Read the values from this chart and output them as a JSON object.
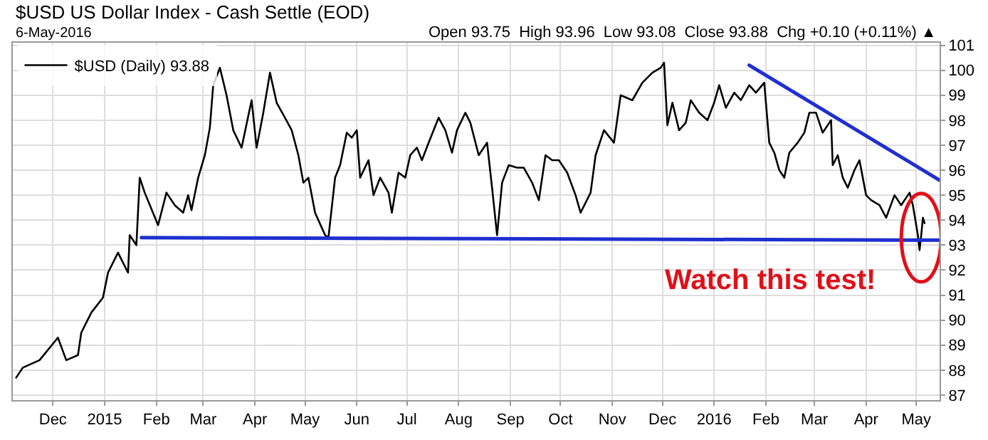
{
  "chart_data": {
    "type": "line",
    "title": "$USD US Dollar Index - Cash Settle (EOD)",
    "subtitle": "6-May-2016",
    "annotations": [
      "Open 93.75  High 93.96  Low 93.08  Close 93.88  Chg +0.10 (+0.11%) ▲",
      {
        "text": "Watch this test!",
        "x": "2016-05-04",
        "y": 93.3
      }
    ],
    "series": [
      {
        "name": "$USD (Daily) 93.88",
        "color": "#000000",
        "x": [
          "2014-11-09",
          "2014-11-13",
          "2014-11-23",
          "2014-12-04",
          "2014-12-09",
          "2014-12-16",
          "2014-12-18",
          "2014-12-24",
          "2014-12-31",
          "2015-01-03",
          "2015-01-09",
          "2015-01-15",
          "2015-01-16",
          "2015-01-20",
          "2015-01-22",
          "2015-01-25",
          "2015-02-02",
          "2015-02-07",
          "2015-02-12",
          "2015-02-17",
          "2015-02-20",
          "2015-02-22",
          "2015-02-26",
          "2015-03-02",
          "2015-03-05",
          "2015-03-07",
          "2015-03-11",
          "2015-03-15",
          "2015-03-19",
          "2015-03-24",
          "2015-03-30",
          "2015-04-02",
          "2015-04-06",
          "2015-04-10",
          "2015-04-14",
          "2015-04-19",
          "2015-04-23",
          "2015-04-27",
          "2015-04-30",
          "2015-05-03",
          "2015-05-07",
          "2015-05-13",
          "2015-05-15",
          "2015-05-19",
          "2015-05-22",
          "2015-05-26",
          "2015-05-29",
          "2015-06-01",
          "2015-06-03",
          "2015-06-08",
          "2015-06-11",
          "2015-06-15",
          "2015-06-20",
          "2015-06-22",
          "2015-06-26",
          "2015-06-30",
          "2015-07-03",
          "2015-07-07",
          "2015-07-10",
          "2015-07-14",
          "2015-07-20",
          "2015-07-24",
          "2015-07-28",
          "2015-07-31",
          "2015-08-05",
          "2015-08-08",
          "2015-08-13",
          "2015-08-18",
          "2015-08-21",
          "2015-08-24",
          "2015-08-27",
          "2015-08-31",
          "2015-09-05",
          "2015-09-09",
          "2015-09-14",
          "2015-09-18",
          "2015-09-22",
          "2015-09-26",
          "2015-09-30",
          "2015-10-05",
          "2015-10-10",
          "2015-10-13",
          "2015-10-19",
          "2015-10-22",
          "2015-10-27",
          "2015-11-02",
          "2015-11-06",
          "2015-11-13",
          "2015-11-19",
          "2015-11-25",
          "2015-11-30",
          "2015-12-02",
          "2015-12-04",
          "2015-12-07",
          "2015-12-11",
          "2015-12-15",
          "2015-12-18",
          "2015-12-23",
          "2015-12-28",
          "2016-01-01",
          "2016-01-04",
          "2016-01-08",
          "2016-01-13",
          "2016-01-17",
          "2016-01-22",
          "2016-01-26",
          "2016-01-31",
          "2016-02-01",
          "2016-02-03",
          "2016-02-06",
          "2016-02-09",
          "2016-02-12",
          "2016-02-15",
          "2016-02-20",
          "2016-02-24",
          "2016-02-27",
          "2016-03-02",
          "2016-03-06",
          "2016-03-11",
          "2016-03-12",
          "2016-03-15",
          "2016-03-18",
          "2016-03-21",
          "2016-03-25",
          "2016-03-28",
          "2016-03-30",
          "2016-04-01",
          "2016-04-04",
          "2016-04-09",
          "2016-04-13",
          "2016-04-18",
          "2016-04-22",
          "2016-04-27",
          "2016-04-29",
          "2016-05-02",
          "2016-05-03",
          "2016-05-04",
          "2016-05-05",
          "2016-05-06"
        ],
        "values": [
          87.7,
          88.1,
          88.4,
          89.3,
          88.4,
          88.6,
          89.5,
          90.3,
          90.9,
          91.9,
          92.7,
          91.9,
          93.4,
          93.0,
          95.7,
          95.1,
          93.8,
          95.1,
          94.6,
          94.3,
          95.0,
          94.4,
          95.7,
          96.6,
          97.7,
          99.4,
          100.1,
          99.0,
          97.6,
          96.9,
          98.8,
          96.9,
          98.3,
          99.9,
          98.7,
          98.1,
          97.6,
          96.6,
          95.5,
          95.7,
          94.3,
          93.4,
          93.3,
          95.7,
          96.2,
          97.5,
          97.3,
          97.6,
          95.7,
          96.4,
          95.0,
          95.7,
          95.1,
          94.3,
          95.9,
          95.7,
          96.6,
          96.9,
          96.4,
          97.1,
          98.1,
          97.6,
          96.7,
          97.6,
          98.3,
          97.9,
          96.6,
          97.1,
          95.3,
          93.4,
          95.5,
          96.2,
          96.1,
          96.1,
          95.5,
          94.8,
          96.6,
          96.4,
          96.4,
          95.9,
          95.0,
          94.3,
          95.1,
          96.6,
          97.6,
          97.1,
          99.0,
          98.8,
          99.5,
          99.9,
          100.1,
          100.3,
          97.8,
          98.7,
          97.6,
          97.9,
          98.8,
          98.3,
          98.0,
          98.7,
          99.4,
          98.5,
          99.1,
          98.8,
          99.4,
          99.1,
          99.5,
          98.7,
          97.1,
          96.7,
          96.0,
          95.7,
          96.7,
          97.1,
          97.5,
          98.3,
          98.3,
          97.5,
          98.0,
          96.2,
          96.6,
          95.7,
          95.3,
          96.0,
          96.4,
          95.7,
          95.0,
          94.8,
          94.6,
          94.1,
          95.0,
          94.6,
          95.1,
          94.6,
          93.4,
          92.8,
          93.4,
          94.1,
          93.88
        ]
      },
      {
        "color": "#1f2fd0",
        "x": [
          "2015-01-23",
          "2016-05-15"
        ],
        "values": [
          93.3,
          93.2
        ]
      },
      {
        "color": "#1f2fd0",
        "x": [
          "2016-01-22",
          "2016-05-15"
        ],
        "values": [
          100.2,
          95.6
        ]
      }
    ],
    "xlim": [
      "2014-11-07",
      "2016-05-15"
    ],
    "xticks": [
      {
        "value": "2014-12-01",
        "label": "Dec"
      },
      {
        "value": "2015-01-01",
        "label": "2015"
      },
      {
        "value": "2015-02-01",
        "label": "Feb"
      },
      {
        "value": "2015-03-01",
        "label": "Mar"
      },
      {
        "value": "2015-04-01",
        "label": "Apr"
      },
      {
        "value": "2015-05-01",
        "label": "May"
      },
      {
        "value": "2015-06-01",
        "label": "Jun"
      },
      {
        "value": "2015-07-01",
        "label": "Jul"
      },
      {
        "value": "2015-08-01",
        "label": "Aug"
      },
      {
        "value": "2015-09-01",
        "label": "Sep"
      },
      {
        "value": "2015-10-01",
        "label": "Oct"
      },
      {
        "value": "2015-11-01",
        "label": "Nov"
      },
      {
        "value": "2015-12-01",
        "label": "Dec"
      },
      {
        "value": "2016-01-01",
        "label": "2016"
      },
      {
        "value": "2016-02-01",
        "label": "Feb"
      },
      {
        "value": "2016-03-01",
        "label": "Mar"
      },
      {
        "value": "2016-04-01",
        "label": "Apr"
      },
      {
        "value": "2016-05-01",
        "label": "May"
      }
    ],
    "ylim": [
      86.8,
      101.1
    ],
    "yticks": [
      87,
      88,
      89,
      90,
      91,
      92,
      93,
      94,
      95,
      96,
      97,
      98,
      99,
      100,
      101
    ],
    "grid": true,
    "legend": "top left",
    "line_style": "solid",
    "marker": "none"
  }
}
